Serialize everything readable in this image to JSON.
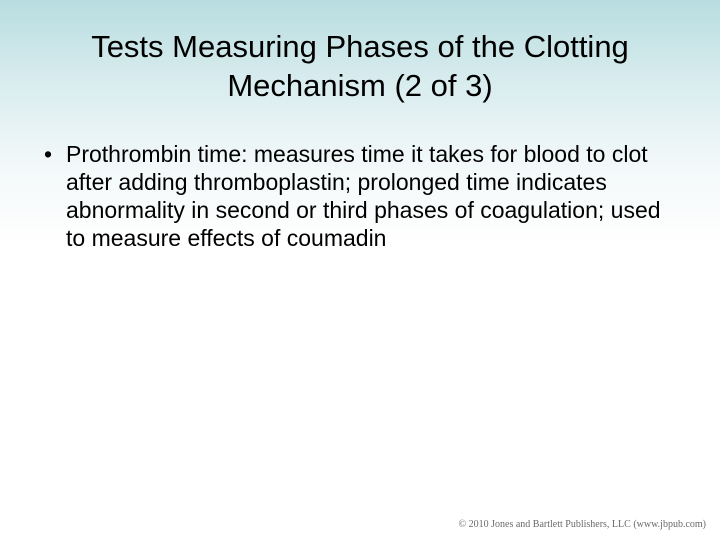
{
  "background": {
    "gradient_top": "#b8dde0",
    "gradient_mid": "#d8ecee",
    "gradient_bottom": "#ffffff"
  },
  "title": {
    "text": "Tests Measuring Phases of the Clotting Mechanism (2 of 3)",
    "fontsize": 31,
    "color": "#000000"
  },
  "bullets": [
    {
      "text": "Prothrombin time: measures time it takes for blood to clot after adding thromboplastin; prolonged time indicates abnormality in second or third phases of coagulation; used to measure effects of coumadin",
      "marker": "•"
    }
  ],
  "body_style": {
    "fontsize": 23,
    "color": "#000000",
    "bullet_marker": "•"
  },
  "copyright": {
    "text": "© 2010 Jones and Bartlett Publishers, LLC (www.jbpub.com)",
    "fontsize": 10,
    "color": "#6a6a6a"
  }
}
